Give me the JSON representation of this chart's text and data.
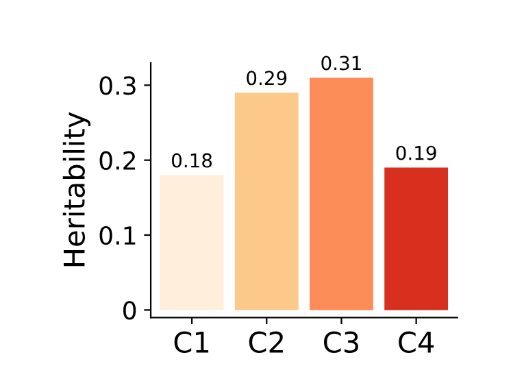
{
  "chart_data": {
    "type": "bar",
    "ylabel": "Heritability",
    "categories": [
      "C1",
      "C2",
      "C3",
      "C4"
    ],
    "values": [
      0.18,
      0.29,
      0.31,
      0.19
    ],
    "colors": [
      "#feeedb",
      "#fdc98a",
      "#fc8d59",
      "#d7301f"
    ],
    "ylim": [
      -0.01,
      0.33
    ],
    "yticks": [
      0,
      0.1,
      0.2,
      0.3
    ],
    "data_labels": true,
    "grid": false
  }
}
